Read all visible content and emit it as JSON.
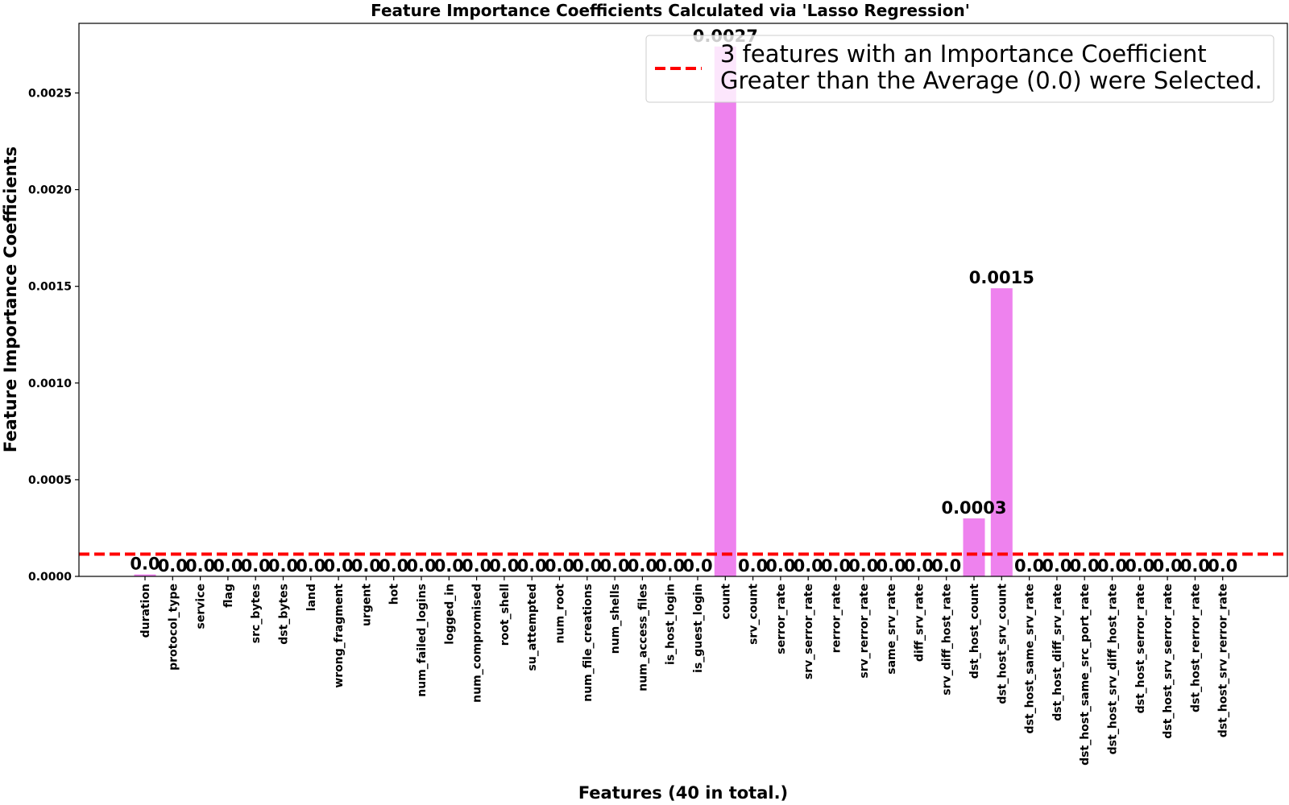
{
  "chart_data": {
    "type": "bar",
    "title": "Feature Importance Coefficients Calculated via 'Lasso Regression'",
    "xlabel": "Features (40 in total.)",
    "ylabel": "Feature Importance Coefficients",
    "ylim": [
      0,
      0.00286
    ],
    "yticks": [
      "0.0000",
      "0.0005",
      "0.0010",
      "0.0015",
      "0.0020",
      "0.0025"
    ],
    "ytick_values": [
      0,
      0.0005,
      0.001,
      0.0015,
      0.002,
      0.0025
    ],
    "bar_color": "#ee82ee",
    "average_line": {
      "value": 0.000115,
      "color": "#ff0000",
      "style": "dashed"
    },
    "legend": {
      "placement": "upper-right",
      "lines": [
        "3 features with an Importance Coefficient",
        "Greater than the Average (0.0) were Selected."
      ]
    },
    "categories": [
      "duration",
      "protocol_type",
      "service",
      "flag",
      "src_bytes",
      "dst_bytes",
      "land",
      "wrong_fragment",
      "urgent",
      "hot",
      "num_failed_logins",
      "logged_in",
      "num_compromised",
      "root_shell",
      "su_attempted",
      "num_root",
      "num_file_creations",
      "num_shells",
      "num_access_files",
      "is_host_login",
      "is_guest_login",
      "count",
      "srv_count",
      "serror_rate",
      "srv_serror_rate",
      "rerror_rate",
      "srv_rerror_rate",
      "same_srv_rate",
      "diff_srv_rate",
      "srv_diff_host_rate",
      "dst_host_count",
      "dst_host_srv_count",
      "dst_host_same_srv_rate",
      "dst_host_diff_srv_rate",
      "dst_host_same_src_port_rate",
      "dst_host_srv_diff_host_rate",
      "dst_host_serror_rate",
      "dst_host_srv_serror_rate",
      "dst_host_rerror_rate",
      "dst_host_srv_rerror_rate"
    ],
    "values": [
      1e-05,
      0,
      0,
      0,
      0,
      0,
      0,
      0,
      0,
      0,
      0,
      0,
      0,
      0,
      0,
      0,
      0,
      0,
      0,
      0,
      0,
      0.00274,
      0,
      0,
      0,
      0,
      0,
      0,
      0,
      0,
      0.0003,
      0.00149,
      0,
      0,
      0,
      0,
      0,
      0,
      0,
      0
    ],
    "data_labels": [
      "0.0",
      "0.0",
      "0.0",
      "0.0",
      "0.0",
      "0.0",
      "0.0",
      "0.0",
      "0.0",
      "0.0",
      "0.0",
      "0.0",
      "0.0",
      "0.0",
      "0.0",
      "0.0",
      "0.0",
      "0.0",
      "0.0",
      "0.0",
      "0.0",
      "0.0027",
      "0.0",
      "0.0",
      "0.0",
      "0.0",
      "0.0",
      "0.0",
      "0.0",
      "0.0",
      "0.0003",
      "0.0015",
      "0.0",
      "0.0",
      "0.0",
      "0.0",
      "0.0",
      "0.0",
      "0.0",
      "0.0"
    ]
  }
}
